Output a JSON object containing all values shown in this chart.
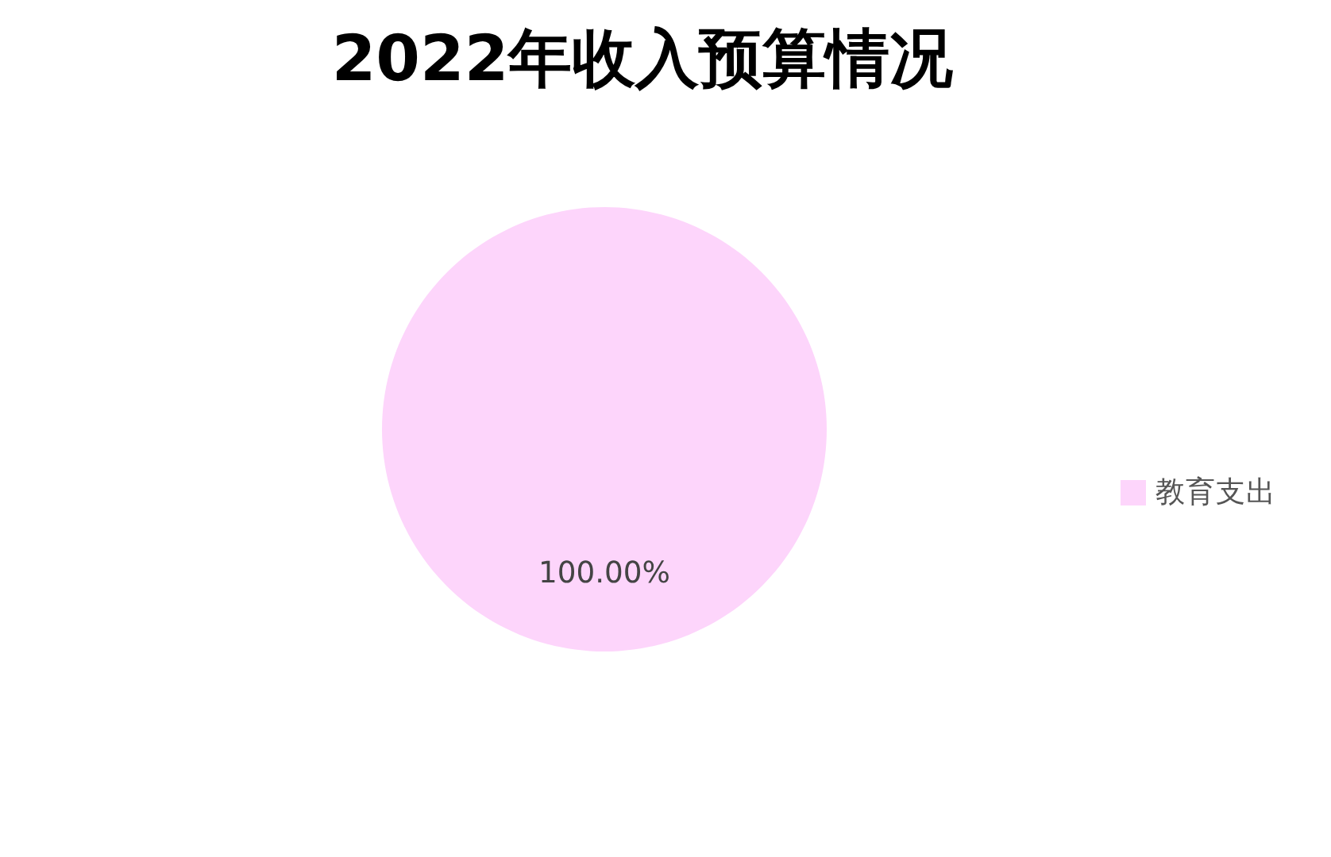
{
  "chart_data": {
    "type": "pie",
    "title": "2022年收入预算情况",
    "categories": [
      "教育支出"
    ],
    "values": [
      100
    ],
    "colors": [
      "#fdd5fb"
    ],
    "value_labels": [
      "100.00%"
    ],
    "legend": "right"
  }
}
